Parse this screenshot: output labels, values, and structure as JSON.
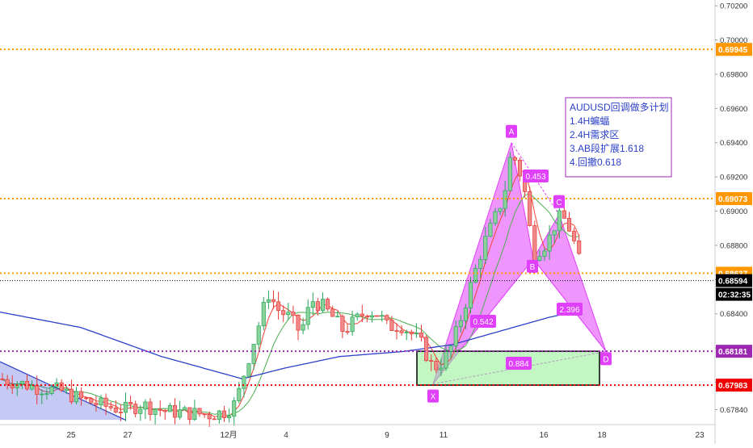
{
  "chart_data": {
    "type": "candlestick",
    "symbol": "AUDUSD",
    "timeframe": "4H",
    "x_tick_labels": [
      "25",
      "27",
      "12月",
      "4",
      "9",
      "11",
      "16",
      "18",
      "23"
    ],
    "y_tick_labels": [
      "0.67840",
      "0.68000",
      "0.68200",
      "0.68400",
      "0.68600",
      "0.68800",
      "0.69000",
      "0.69200",
      "0.69400",
      "0.69600",
      "0.69800",
      "0.70000",
      "0.70200"
    ],
    "ylim": [
      0.6771,
      0.7021
    ],
    "horizontal_levels": [
      {
        "value": 0.69945,
        "label": "0.69945",
        "color": "#ff9800",
        "style": "dotted"
      },
      {
        "value": 0.69073,
        "label": "0.69073",
        "color": "#ff9800",
        "style": "dotted"
      },
      {
        "value": 0.68637,
        "label": "0.68637",
        "color": "#ff9800",
        "style": "dotted"
      },
      {
        "value": 0.68594,
        "label": "0.68594",
        "color": "#000000",
        "style": "dotted"
      },
      {
        "value": 0.68181,
        "label": "0.68181",
        "color": "#9c27b0",
        "style": "dotted"
      },
      {
        "value": 0.67983,
        "label": "0.67983",
        "color": "#f00000",
        "style": "dotted"
      }
    ],
    "last_price_label": "0.68594",
    "countdown_label": "02:32:35",
    "pattern": {
      "name": "Bat",
      "points": [
        {
          "label": "X",
          "value": 0.6799
        },
        {
          "label": "A",
          "value": 0.694
        },
        {
          "label": "B",
          "value": 0.6872
        },
        {
          "label": "C",
          "value": 0.6898
        },
        {
          "label": "D",
          "value": 0.6818
        }
      ],
      "ratios": [
        "0.453",
        "0.542",
        "2.396",
        "0.884"
      ]
    },
    "demand_zone": {
      "top": 0.68181,
      "bottom": 0.67983
    },
    "annotation": {
      "lines": [
        "AUDUSD回调做多计划",
        "1.4H蝙蝠",
        "2.4H需求区",
        "3.AB段扩展1.618",
        "4.回撤0.618"
      ]
    },
    "ma_colors": {
      "fast": "#f44336",
      "mid": "#4caf50",
      "slow": "#2b3fc8"
    },
    "pattern_color": "#e040fb",
    "zone_color": "#90ee90",
    "grid": false
  }
}
